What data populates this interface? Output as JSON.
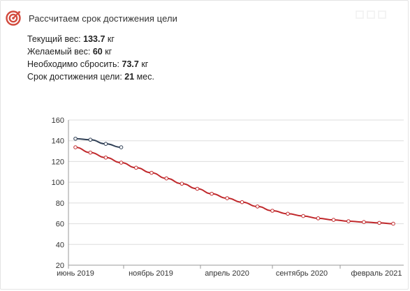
{
  "header": {
    "title": "Рассчитаем срок достижения цели",
    "icon": "target-icon"
  },
  "info": {
    "current_label": "Текущий вес: ",
    "current_value": "133.7",
    "current_unit": " кг",
    "target_label": "Желаемый вес: ",
    "target_value": "60",
    "target_unit": " кг",
    "lose_label": "Необходимо сбросить: ",
    "lose_value": "73.7",
    "lose_unit": " кг",
    "term_label": "Срок достижения цели: ",
    "term_value": "21",
    "term_unit": " мес."
  },
  "colors": {
    "forecast": "#c0282b",
    "actual": "#2f3f55",
    "grid": "#dddddd",
    "axis": "#999999",
    "icon": "#d24b3e"
  },
  "chart_data": {
    "type": "line",
    "x_ticks": [
      "июнь 2019",
      "ноябрь 2019",
      "апрель 2020",
      "сентябрь 2020",
      "февраль 2021"
    ],
    "ylim": [
      20,
      160
    ],
    "y_ticks": [
      20,
      40,
      60,
      80,
      100,
      120,
      140,
      160
    ],
    "grid": "horizontal",
    "series": [
      {
        "key": "forecast",
        "color": "#c0282b",
        "x": [
          "2019-06-01",
          "2019-07-01",
          "2019-08-01",
          "2019-09-01",
          "2019-10-01",
          "2019-11-01",
          "2019-12-01",
          "2020-01-01",
          "2020-02-01",
          "2020-03-01",
          "2020-04-01",
          "2020-05-01",
          "2020-06-01",
          "2020-07-01",
          "2020-08-01",
          "2020-09-01",
          "2020-10-01",
          "2020-11-01",
          "2020-12-01",
          "2021-01-01",
          "2021-02-01",
          "2021-03-01"
        ],
        "values": [
          133.7,
          128.6,
          123.8,
          118.9,
          114.0,
          109.1,
          103.7,
          98.6,
          93.7,
          88.9,
          84.6,
          80.8,
          76.6,
          72.5,
          69.6,
          67.4,
          65.2,
          63.7,
          62.4,
          61.6,
          60.8,
          60.0
        ]
      },
      {
        "key": "actual",
        "color": "#2f3f55",
        "x": [
          "2019-06-01",
          "2019-07-01",
          "2019-08-01",
          "2019-09-01"
        ],
        "values": [
          142.0,
          141.0,
          137.0,
          133.7
        ]
      }
    ]
  }
}
